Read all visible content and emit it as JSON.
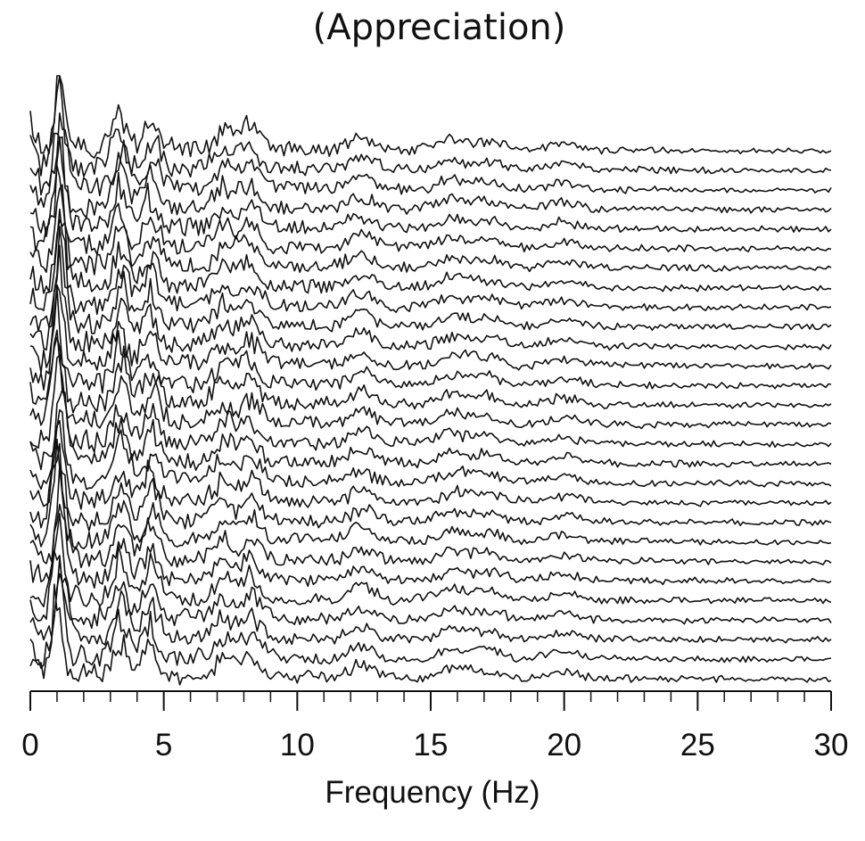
{
  "chart_data": {
    "type": "line",
    "title": "(Appreciation)",
    "xlabel": "Frequency (Hz)",
    "ylabel": "",
    "xlim": [
      0,
      30
    ],
    "xticks": [
      0,
      5,
      10,
      15,
      20,
      25,
      30
    ],
    "minor_tick_step": 1,
    "grid": false,
    "legend": "none",
    "stacked_traces": 28,
    "spectral_peaks_hz": [
      1.1,
      3.4,
      4.5,
      7.2,
      8.2,
      12.4,
      15.8,
      17.1,
      20.0
    ],
    "peak_relative_heights": [
      1.0,
      0.7,
      0.55,
      0.35,
      0.4,
      0.22,
      0.18,
      0.15,
      0.12
    ],
    "line_color": "#111111"
  }
}
